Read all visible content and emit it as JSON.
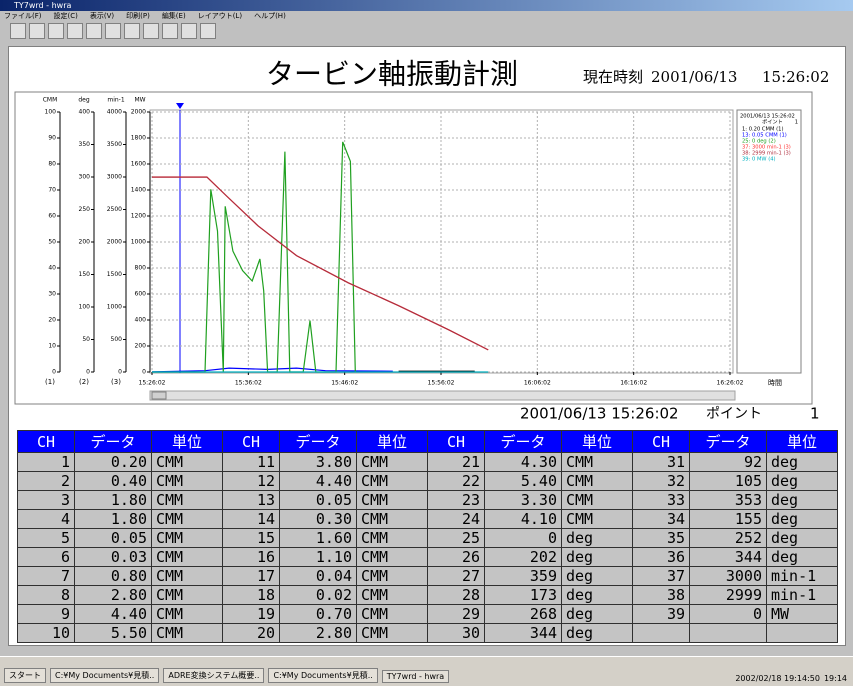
{
  "window": {
    "title": "TY7wrd - hwra",
    "menu": [
      "ファイル(F)",
      "設定(C)",
      "表示(V)",
      "印刷(P)",
      "編集(E)",
      "レイアウト(L)",
      "ヘルプ(H)"
    ]
  },
  "header": {
    "title": "タービン軸振動計測",
    "clock_label": "現在時刻",
    "date": "2001/06/13",
    "time": "15:26:02"
  },
  "chart_data": {
    "type": "line",
    "x_label": "時間",
    "xlim": [
      0,
      60
    ],
    "xticks": [
      {
        "value": 0,
        "label": "15:26:02"
      },
      {
        "value": 10,
        "label": "15:36:02"
      },
      {
        "value": 20,
        "label": "15:46:02"
      },
      {
        "value": 30,
        "label": "15:56:02"
      },
      {
        "value": 40,
        "label": "16:06:02"
      },
      {
        "value": 50,
        "label": "16:16:02"
      },
      {
        "value": 60,
        "label": "16:26:02"
      }
    ],
    "grid": true,
    "axes": [
      {
        "label": "CMM",
        "tag": "(1)",
        "ylim": [
          0,
          100
        ],
        "yticks": [
          0,
          10,
          20,
          30,
          40,
          50,
          60,
          70,
          80,
          90,
          100
        ]
      },
      {
        "label": "deg",
        "tag": "(2)",
        "ylim": [
          0,
          400
        ],
        "yticks": [
          0,
          50,
          100,
          150,
          200,
          250,
          300,
          350,
          400
        ]
      },
      {
        "label": "min-1",
        "tag": "(3)",
        "ylim": [
          0,
          4000
        ],
        "yticks": [
          0,
          500,
          1000,
          1500,
          2000,
          2500,
          3000,
          3500,
          4000
        ]
      },
      {
        "label": "MW",
        "ylim": [
          0,
          2000
        ],
        "yticks": [
          0,
          200,
          400,
          600,
          800,
          1000,
          1200,
          1400,
          1600,
          1800,
          2000
        ]
      }
    ],
    "legend": {
      "time": "2001/06/13 15:26:02",
      "point_label": "ポイント",
      "point": "1"
    },
    "series": [
      {
        "name": "1:  0.20 CMM (1)",
        "color": "#000000",
        "axis": 0,
        "x": [
          25.6,
          33.5
        ],
        "values": [
          0.3,
          0.3
        ]
      },
      {
        "name": "13:  0.05 CMM (1)",
        "color": "#0000ff",
        "axis": 0,
        "x": [
          0,
          5.5,
          8,
          12,
          15,
          18,
          25
        ],
        "values": [
          0.05,
          0.5,
          1.5,
          1,
          1.5,
          0.5,
          0.3
        ]
      },
      {
        "name": "25:  0 deg (2)",
        "color": "#20a020",
        "axis": 1,
        "x": [
          0,
          5.5,
          6.1,
          6.8,
          7.4,
          7.6,
          8.4,
          9.4,
          10.4,
          11.2,
          11.6,
          12.0,
          13.0,
          13.8,
          14.3,
          15.7,
          16.4,
          17.0,
          19.1,
          19.8,
          20.6,
          21.1
        ],
        "values": [
          0,
          0,
          281,
          217,
          0,
          255,
          186,
          156,
          140,
          174,
          125,
          0,
          0,
          339,
          0,
          0,
          79,
          0,
          0,
          354,
          324,
          0
        ]
      },
      {
        "name": "37:  3000 min-1 (3)",
        "color": "#ff3030",
        "axis": 2,
        "x": [
          0,
          5.7,
          7.8,
          11,
          15,
          20.4,
          25.6,
          30.8,
          34.9
        ],
        "values": [
          3000,
          3000,
          2700,
          2250,
          1790,
          1370,
          1020,
          650,
          340
        ]
      },
      {
        "name": "38:  2999 min-1 (3)",
        "color": "#b03040",
        "axis": 2,
        "x": [
          0,
          5.7,
          7.8,
          11,
          15,
          20.4,
          25.6,
          30.8,
          34.9
        ],
        "values": [
          2999,
          2999,
          2700,
          2250,
          1790,
          1370,
          1020,
          650,
          340
        ]
      },
      {
        "name": "39:  0 MW (4)",
        "color": "#00b0c0",
        "axis": 3,
        "x": [
          0,
          34.9
        ],
        "values": [
          0,
          0
        ]
      }
    ]
  },
  "cursor_info": {
    "time": "2001/06/13 15:26:02",
    "point_label": "ポイント",
    "point": "1"
  },
  "table": {
    "headers": [
      "CH",
      "データ",
      "単位"
    ],
    "rows": [
      [
        "1",
        "0.20",
        "CMM",
        "11",
        "3.80",
        "CMM",
        "21",
        "4.30",
        "CMM",
        "31",
        "92",
        "deg"
      ],
      [
        "2",
        "0.40",
        "CMM",
        "12",
        "4.40",
        "CMM",
        "22",
        "5.40",
        "CMM",
        "32",
        "105",
        "deg"
      ],
      [
        "3",
        "1.80",
        "CMM",
        "13",
        "0.05",
        "CMM",
        "23",
        "3.30",
        "CMM",
        "33",
        "353",
        "deg"
      ],
      [
        "4",
        "1.80",
        "CMM",
        "14",
        "0.30",
        "CMM",
        "24",
        "4.10",
        "CMM",
        "34",
        "155",
        "deg"
      ],
      [
        "5",
        "0.05",
        "CMM",
        "15",
        "1.60",
        "CMM",
        "25",
        "0",
        "deg",
        "35",
        "252",
        "deg"
      ],
      [
        "6",
        "0.03",
        "CMM",
        "16",
        "1.10",
        "CMM",
        "26",
        "202",
        "deg",
        "36",
        "344",
        "deg"
      ],
      [
        "7",
        "0.80",
        "CMM",
        "17",
        "0.04",
        "CMM",
        "27",
        "359",
        "deg",
        "37",
        "3000",
        "min-1"
      ],
      [
        "8",
        "2.80",
        "CMM",
        "18",
        "0.02",
        "CMM",
        "28",
        "173",
        "deg",
        "38",
        "2999",
        "min-1"
      ],
      [
        "9",
        "4.40",
        "CMM",
        "19",
        "0.70",
        "CMM",
        "29",
        "268",
        "deg",
        "39",
        "0",
        "MW"
      ],
      [
        "10",
        "5.50",
        "CMM",
        "20",
        "2.80",
        "CMM",
        "30",
        "344",
        "deg"
      ]
    ]
  },
  "taskbar": {
    "start": "スタート",
    "tasks": [
      "C:¥My Documents¥見積..",
      "ADRE変換システム概要..",
      "C:¥My Documents¥見積..",
      "TY7wrd - hwra"
    ],
    "status": "2002/02/18 19:14:50",
    "clock": "19:14"
  }
}
